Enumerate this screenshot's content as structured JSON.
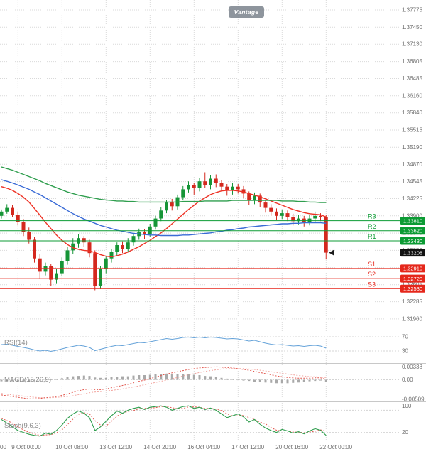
{
  "watermark": {
    "label": "Vantage"
  },
  "colors": {
    "candle_up": "#169537",
    "candle_down": "#d4281e",
    "ma_fast": "#ee3124",
    "ma_mid": "#3a6bd6",
    "ma_slow": "#2f9e4e",
    "resistance": "#0c9b34",
    "support": "#e5271b",
    "current": "#111111",
    "rsi_line": "#66a3d9",
    "macd_line": "#e2574e",
    "macd_signal": "#f2a49e",
    "macd_hist": "#a9a9a9",
    "stoch_k": "#2f9e4e",
    "stoch_d": "#e2574e",
    "grid": "#d9d9d9",
    "axis_text": "#6f6f6f",
    "panel_border": "#c8c8c8"
  },
  "chart_data": {
    "type": "candlestick",
    "y_axis": {
      "ticks": [
        1.37775,
        1.3745,
        1.3713,
        1.36805,
        1.36485,
        1.3616,
        1.3584,
        1.35515,
        1.3519,
        1.3487,
        1.34545,
        1.34225,
        1.339,
        1.33575,
        1.3325,
        1.32925,
        1.32605,
        1.32285,
        1.3196
      ]
    },
    "x_axis": {
      "bar_indices": [
        3,
        11,
        19,
        27,
        35,
        43,
        51,
        59
      ],
      "labels": [
        "9 Oct 00:00",
        "10 Oct 08:00",
        "13 Oct 12:00",
        "14 Oct 20:00",
        "16 Oct 04:00",
        "17 Oct 12:00",
        "20 Oct 16:00",
        "22 Oct 00:00"
      ],
      "clipped_label": "00"
    },
    "candles": [
      [
        1.339,
        1.3402,
        1.3385,
        1.3398
      ],
      [
        1.3398,
        1.3412,
        1.3394,
        1.3405
      ],
      [
        1.3405,
        1.341,
        1.3388,
        1.3392
      ],
      [
        1.3392,
        1.3398,
        1.3372,
        1.3378
      ],
      [
        1.3378,
        1.3384,
        1.3352,
        1.336
      ],
      [
        1.336,
        1.3368,
        1.3338,
        1.3345
      ],
      [
        1.3345,
        1.335,
        1.3302,
        1.331
      ],
      [
        1.331,
        1.3318,
        1.3272,
        1.3285
      ],
      [
        1.3285,
        1.3302,
        1.3278,
        1.3295
      ],
      [
        1.3295,
        1.33,
        1.3258,
        1.327
      ],
      [
        1.327,
        1.329,
        1.3262,
        1.3282
      ],
      [
        1.3282,
        1.3312,
        1.3276,
        1.3305
      ],
      [
        1.3305,
        1.3332,
        1.3298,
        1.3325
      ],
      [
        1.3325,
        1.3348,
        1.3318,
        1.3338
      ],
      [
        1.3338,
        1.3355,
        1.333,
        1.3348
      ],
      [
        1.3348,
        1.3352,
        1.3332,
        1.334
      ],
      [
        1.334,
        1.3345,
        1.3312,
        1.332
      ],
      [
        1.332,
        1.3325,
        1.325,
        1.3258
      ],
      [
        1.3258,
        1.3295,
        1.3252,
        1.329
      ],
      [
        1.329,
        1.3315,
        1.3282,
        1.331
      ],
      [
        1.331,
        1.3328,
        1.3302,
        1.3322
      ],
      [
        1.3322,
        1.334,
        1.3315,
        1.3335
      ],
      [
        1.3335,
        1.3342,
        1.332,
        1.3328
      ],
      [
        1.3328,
        1.3348,
        1.3322,
        1.334
      ],
      [
        1.334,
        1.3358,
        1.3334,
        1.3352
      ],
      [
        1.3352,
        1.3366,
        1.3345,
        1.336
      ],
      [
        1.336,
        1.3365,
        1.3346,
        1.3355
      ],
      [
        1.3355,
        1.3375,
        1.335,
        1.337
      ],
      [
        1.337,
        1.339,
        1.3364,
        1.3385
      ],
      [
        1.3385,
        1.3406,
        1.338,
        1.34
      ],
      [
        1.34,
        1.342,
        1.3395,
        1.3415
      ],
      [
        1.3415,
        1.3422,
        1.34,
        1.3408
      ],
      [
        1.3408,
        1.343,
        1.3402,
        1.3425
      ],
      [
        1.3425,
        1.3446,
        1.342,
        1.344
      ],
      [
        1.344,
        1.3455,
        1.3434,
        1.3448
      ],
      [
        1.3448,
        1.3452,
        1.343,
        1.3442
      ],
      [
        1.3442,
        1.3462,
        1.3436,
        1.3455
      ],
      [
        1.3455,
        1.3472,
        1.3442,
        1.3448
      ],
      [
        1.3448,
        1.3466,
        1.344,
        1.346
      ],
      [
        1.346,
        1.3468,
        1.3444,
        1.3452
      ],
      [
        1.3452,
        1.3458,
        1.3436,
        1.3445
      ],
      [
        1.3445,
        1.345,
        1.3428,
        1.3438
      ],
      [
        1.3438,
        1.3452,
        1.343,
        1.3445
      ],
      [
        1.3445,
        1.345,
        1.3432,
        1.344
      ],
      [
        1.344,
        1.3446,
        1.3424,
        1.3432
      ],
      [
        1.3432,
        1.3436,
        1.341,
        1.342
      ],
      [
        1.342,
        1.3434,
        1.3412,
        1.3428
      ],
      [
        1.3428,
        1.3432,
        1.3406,
        1.3415
      ],
      [
        1.3415,
        1.342,
        1.3396,
        1.3405
      ],
      [
        1.3405,
        1.3412,
        1.339,
        1.3398
      ],
      [
        1.3398,
        1.3404,
        1.3382,
        1.339
      ],
      [
        1.339,
        1.3402,
        1.3384,
        1.3395
      ],
      [
        1.3395,
        1.34,
        1.338,
        1.3388
      ],
      [
        1.3388,
        1.3394,
        1.3372,
        1.338
      ],
      [
        1.338,
        1.3392,
        1.3374,
        1.3385
      ],
      [
        1.3385,
        1.339,
        1.337,
        1.3378
      ],
      [
        1.3378,
        1.3392,
        1.3372,
        1.3385
      ],
      [
        1.3385,
        1.3398,
        1.3378,
        1.339
      ],
      [
        1.339,
        1.3395,
        1.338,
        1.3388
      ],
      [
        1.3388,
        1.3392,
        1.3308,
        1.33208
      ]
    ],
    "moving_averages": [
      {
        "name": "ma-fast-red-line",
        "color_key": "ma_fast",
        "values": [
          1.3445,
          1.3442,
          1.3438,
          1.3432,
          1.3425,
          1.3416,
          1.3404,
          1.3391,
          1.3378,
          1.3366,
          1.3354,
          1.3344,
          1.3336,
          1.333,
          1.3327,
          1.3325,
          1.3324,
          1.3321,
          1.3317,
          1.3314,
          1.3313,
          1.3315,
          1.3318,
          1.3322,
          1.3327,
          1.3332,
          1.3338,
          1.3344,
          1.3351,
          1.3358,
          1.3366,
          1.3375,
          1.3384,
          1.3393,
          1.3402,
          1.341,
          1.3418,
          1.3424,
          1.343,
          1.3434,
          1.3437,
          1.3438,
          1.3438,
          1.3437,
          1.3435,
          1.3432,
          1.3429,
          1.3426,
          1.3422,
          1.3418,
          1.3414,
          1.341,
          1.3406,
          1.3402,
          1.3399,
          1.3396,
          1.3394,
          1.3393,
          1.3392,
          1.3388
        ]
      },
      {
        "name": "ma-mid-blue-line",
        "color_key": "ma_mid",
        "values": [
          1.3458,
          1.3455,
          1.3452,
          1.3448,
          1.3444,
          1.344,
          1.3435,
          1.343,
          1.3424,
          1.3418,
          1.3412,
          1.3406,
          1.34,
          1.3394,
          1.3389,
          1.3384,
          1.338,
          1.3376,
          1.3372,
          1.3369,
          1.3366,
          1.3363,
          1.3361,
          1.3359,
          1.3357,
          1.3356,
          1.3355,
          1.3354,
          1.3354,
          1.3353,
          1.3353,
          1.3353,
          1.3353,
          1.3354,
          1.3354,
          1.3355,
          1.3356,
          1.3357,
          1.3358,
          1.336,
          1.3361,
          1.3363,
          1.3364,
          1.3366,
          1.3367,
          1.3369,
          1.337,
          1.3371,
          1.3372,
          1.3373,
          1.3374,
          1.3375,
          1.3375,
          1.3376,
          1.3376,
          1.3377,
          1.3377,
          1.3377,
          1.3377,
          1.3376
        ]
      },
      {
        "name": "ma-slow-green-line",
        "color_key": "ma_slow",
        "values": [
          1.3482,
          1.3479,
          1.3476,
          1.3472,
          1.3468,
          1.3464,
          1.346,
          1.3456,
          1.3451,
          1.3447,
          1.3443,
          1.3439,
          1.3435,
          1.3432,
          1.3429,
          1.3427,
          1.3425,
          1.3423,
          1.3421,
          1.342,
          1.3419,
          1.3418,
          1.3418,
          1.3417,
          1.3417,
          1.3416,
          1.3416,
          1.3416,
          1.3416,
          1.3416,
          1.3416,
          1.3416,
          1.3416,
          1.3417,
          1.3417,
          1.3417,
          1.3417,
          1.3418,
          1.3418,
          1.3418,
          1.3418,
          1.3418,
          1.3419,
          1.3419,
          1.3419,
          1.3419,
          1.3419,
          1.3419,
          1.3419,
          1.3419,
          1.3419,
          1.3418,
          1.3418,
          1.3418,
          1.3417,
          1.3417,
          1.3416,
          1.3416,
          1.3415,
          1.3415
        ]
      }
    ],
    "levels": {
      "resistance": [
        {
          "label": "R3",
          "value": 1.3381,
          "display": "1.33810"
        },
        {
          "label": "R2",
          "value": 1.3362,
          "display": "1.33620"
        },
        {
          "label": "R1",
          "value": 1.3343,
          "display": "1.33430"
        }
      ],
      "support": [
        {
          "label": "S1",
          "value": 1.3291,
          "display": "1.32910"
        },
        {
          "label": "S2",
          "value": 1.3272,
          "display": "1.32720"
        },
        {
          "label": "S3",
          "value": 1.3253,
          "display": "1.32530"
        }
      ],
      "current": {
        "value": 1.33208,
        "display": "1.33208"
      }
    },
    "rsi": {
      "label": "RSI(14)",
      "levels": [
        70,
        30
      ],
      "values": [
        48,
        49,
        46,
        43,
        40,
        37,
        33,
        30,
        32,
        29,
        32,
        36,
        40,
        43,
        46,
        44,
        40,
        31,
        35,
        39,
        43,
        46,
        45,
        48,
        51,
        54,
        53,
        56,
        59,
        62,
        65,
        63,
        65,
        68,
        69,
        67,
        69,
        67,
        69,
        68,
        66,
        64,
        65,
        64,
        61,
        58,
        60,
        56,
        52,
        49,
        47,
        48,
        46,
        44,
        45,
        43,
        45,
        46,
        44,
        38
      ]
    },
    "macd": {
      "label": "MACD(12,26,9)",
      "axis_labels": [
        {
          "text": "0.00338",
          "value": 0.00338
        },
        {
          "text": "0.00",
          "value": 0
        },
        {
          "text": "-0.00509",
          "value": -0.00509
        }
      ],
      "macd": [
        -0.004,
        -0.0042,
        -0.0044,
        -0.0046,
        -0.0048,
        -0.005,
        -0.005,
        -0.0049,
        -0.0047,
        -0.0046,
        -0.0044,
        -0.0041,
        -0.0037,
        -0.0033,
        -0.0029,
        -0.0026,
        -0.0024,
        -0.0026,
        -0.0026,
        -0.0024,
        -0.0021,
        -0.0018,
        -0.0015,
        -0.0012,
        -0.0008,
        -0.0004,
        -0.0001,
        0.0003,
        0.0007,
        0.0011,
        0.0015,
        0.0018,
        0.0021,
        0.0024,
        0.0027,
        0.0029,
        0.0031,
        0.0032,
        0.0033,
        0.0034,
        0.0033,
        0.0032,
        0.0031,
        0.0029,
        0.0027,
        0.0025,
        0.0022,
        0.0019,
        0.0016,
        0.0013,
        0.001,
        0.0008,
        0.0006,
        0.0005,
        0.0004,
        0.0004,
        0.0004,
        0.0005,
        0.0005,
        0.0001
      ],
      "signal": [
        -0.0036,
        -0.0038,
        -0.004,
        -0.0041,
        -0.0043,
        -0.0044,
        -0.0046,
        -0.0047,
        -0.0047,
        -0.0047,
        -0.0046,
        -0.0045,
        -0.0044,
        -0.0042,
        -0.0039,
        -0.0037,
        -0.0034,
        -0.0032,
        -0.0031,
        -0.0029,
        -0.0028,
        -0.0026,
        -0.0024,
        -0.0021,
        -0.0019,
        -0.0016,
        -0.0013,
        -0.001,
        -0.0007,
        -0.0004,
        -0.0001,
        0.0003,
        0.0006,
        0.001,
        0.0013,
        0.0016,
        0.0019,
        0.0022,
        0.0024,
        0.0026,
        0.0028,
        0.0029,
        0.0029,
        0.0029,
        0.0029,
        0.0028,
        0.0027,
        0.0025,
        0.0023,
        0.0021,
        0.0019,
        0.0017,
        0.0015,
        0.0013,
        0.0011,
        0.001,
        0.0008,
        0.0008,
        0.0007,
        0.0006
      ]
    },
    "stoch": {
      "label": "Stoch(9,6,3)",
      "levels": [
        80,
        20
      ],
      "axis_labels": [
        {
          "text": "100",
          "value": 100
        },
        {
          "text": "20",
          "value": 20
        }
      ],
      "k": [
        55,
        45,
        35,
        25,
        20,
        15,
        12,
        10,
        18,
        15,
        25,
        40,
        58,
        70,
        78,
        72,
        60,
        25,
        35,
        50,
        65,
        78,
        72,
        80,
        85,
        88,
        82,
        88,
        90,
        92,
        88,
        80,
        85,
        90,
        92,
        85,
        88,
        82,
        86,
        80,
        70,
        60,
        65,
        70,
        62,
        48,
        55,
        42,
        32,
        25,
        20,
        28,
        24,
        18,
        22,
        16,
        24,
        30,
        26,
        12
      ],
      "d": [
        58,
        52,
        45,
        35,
        27,
        20,
        16,
        12,
        13,
        14,
        19,
        27,
        41,
        56,
        69,
        73,
        70,
        52,
        40,
        37,
        50,
        64,
        72,
        77,
        79,
        84,
        85,
        86,
        87,
        90,
        90,
        87,
        84,
        85,
        89,
        89,
        88,
        85,
        85,
        83,
        79,
        70,
        65,
        65,
        66,
        60,
        55,
        48,
        43,
        33,
        26,
        24,
        24,
        21,
        21,
        19,
        21,
        23,
        27,
        23
      ]
    }
  }
}
